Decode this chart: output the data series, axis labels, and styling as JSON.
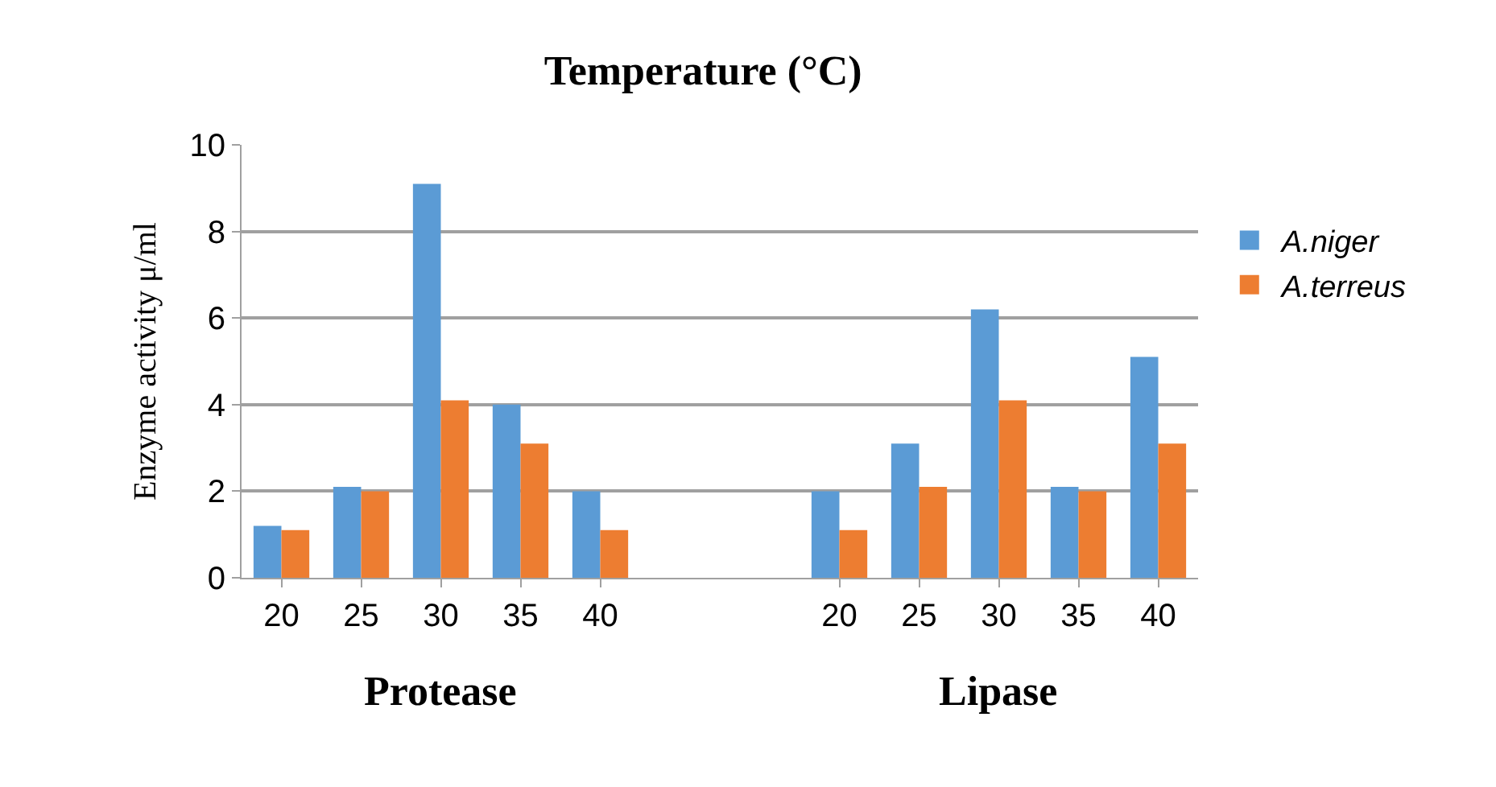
{
  "chart_data": {
    "type": "bar",
    "title": "Temperature (°C)",
    "ylabel": "Enzyme activity μ/ml",
    "categories": [
      "20",
      "25",
      "30",
      "35",
      "40",
      null,
      null,
      "20",
      "25",
      "30",
      "35",
      "40"
    ],
    "series": [
      {
        "name": "A.niger",
        "color": "#5b9bd5",
        "values": [
          1.2,
          2.1,
          9.1,
          4.0,
          2.0,
          null,
          0,
          2.0,
          3.1,
          6.2,
          2.1,
          5.1
        ]
      },
      {
        "name": "A.terreus",
        "color": "#ed7d31",
        "values": [
          1.1,
          2.0,
          4.1,
          3.1,
          1.1,
          null,
          0,
          1.1,
          2.1,
          4.1,
          2.0,
          3.1
        ]
      }
    ],
    "annotations": [
      "Protease",
      "Lipase"
    ],
    "ylim": [
      0,
      10
    ],
    "yticks": [
      0,
      2,
      4,
      6,
      8,
      10
    ],
    "grid": "y",
    "legend": "right"
  }
}
